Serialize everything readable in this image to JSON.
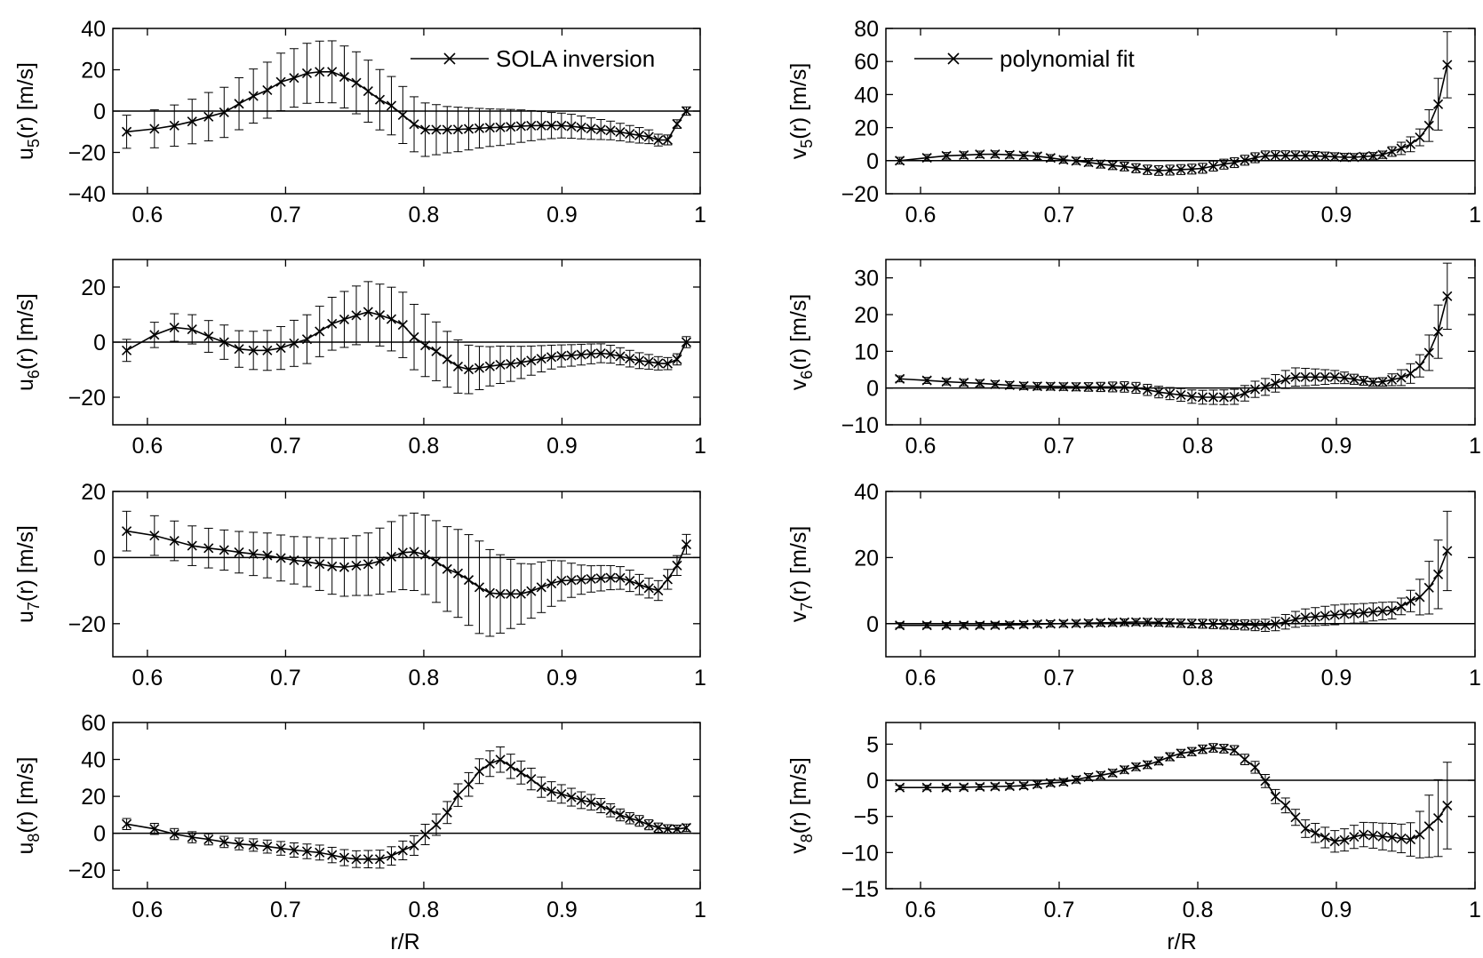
{
  "figure": {
    "xlabel": "r/R",
    "legend_left": "SOLA inversion",
    "legend_right": "polynomial fit"
  },
  "chart_data": [
    {
      "id": "u5",
      "type": "line",
      "column": "left",
      "row": 0,
      "ylabel_base": "u",
      "ylabel_sub": "5",
      "ylabel_rest": "(r) [m/s]",
      "xlim": [
        0.575,
        1.0
      ],
      "ylim": [
        -40,
        40
      ],
      "xticks": [
        0.6,
        0.7,
        0.8,
        0.9,
        1
      ],
      "xtick_labels": [
        "0.6",
        "0.7",
        "0.8",
        "0.9",
        "1"
      ],
      "yticks": [
        -40,
        -20,
        0,
        20,
        40
      ],
      "ytick_labels": [
        "−40",
        "−20",
        "0",
        "20",
        "40"
      ],
      "legend": "top-right",
      "x_range": [
        0.585,
        0.99
      ],
      "n_points": 48,
      "knots_x": [
        0.585,
        0.6,
        0.62,
        0.65,
        0.68,
        0.7,
        0.72,
        0.735,
        0.75,
        0.77,
        0.8,
        0.82,
        0.85,
        0.88,
        0.9,
        0.93,
        0.96,
        0.975,
        0.985,
        0.99
      ],
      "knots_y": [
        -10,
        -9,
        -7,
        -2,
        8,
        15,
        19,
        19,
        14,
        5,
        -9,
        -9,
        -8,
        -7,
        -7,
        -9,
        -12,
        -15,
        -5,
        0
      ],
      "err_x": [
        0.585,
        0.62,
        0.65,
        0.7,
        0.73,
        0.76,
        0.78,
        0.8,
        0.82,
        0.85,
        0.9,
        0.95,
        0.985
      ],
      "err_y": [
        8,
        10,
        12,
        14,
        15,
        15,
        14,
        13,
        11,
        9,
        6,
        4,
        2
      ]
    },
    {
      "id": "u6",
      "type": "line",
      "column": "left",
      "row": 1,
      "ylabel_base": "u",
      "ylabel_sub": "6",
      "ylabel_rest": "(r) [m/s]",
      "xlim": [
        0.575,
        1.0
      ],
      "ylim": [
        -30,
        30
      ],
      "xticks": [
        0.6,
        0.7,
        0.8,
        0.9,
        1
      ],
      "xtick_labels": [
        "0.6",
        "0.7",
        "0.8",
        "0.9",
        "1"
      ],
      "yticks": [
        -20,
        0,
        20
      ],
      "ytick_labels": [
        "−20",
        "0",
        "20"
      ],
      "x_range": [
        0.585,
        0.99
      ],
      "n_points": 48,
      "knots_x": [
        0.585,
        0.6,
        0.625,
        0.645,
        0.67,
        0.69,
        0.71,
        0.74,
        0.76,
        0.78,
        0.8,
        0.83,
        0.86,
        0.9,
        0.93,
        0.96,
        0.975,
        0.985,
        0.99
      ],
      "knots_y": [
        -3,
        2,
        6,
        2,
        -3,
        -3,
        0,
        8,
        11,
        8,
        -1,
        -10,
        -8,
        -5,
        -4,
        -7,
        -8,
        -6,
        0
      ],
      "err_x": [
        0.585,
        0.62,
        0.68,
        0.72,
        0.76,
        0.79,
        0.82,
        0.85,
        0.9,
        0.95,
        0.985
      ],
      "err_y": [
        4,
        5,
        7,
        9,
        11,
        12,
        10,
        7,
        4,
        3,
        2
      ]
    },
    {
      "id": "u7",
      "type": "line",
      "column": "left",
      "row": 2,
      "ylabel_base": "u",
      "ylabel_sub": "7",
      "ylabel_rest": "(r) [m/s]",
      "xlim": [
        0.575,
        1.0
      ],
      "ylim": [
        -30,
        20
      ],
      "xticks": [
        0.6,
        0.7,
        0.8,
        0.9,
        1
      ],
      "xtick_labels": [
        "0.6",
        "0.7",
        "0.8",
        "0.9",
        "1"
      ],
      "yticks": [
        -20,
        0,
        20
      ],
      "ytick_labels": [
        "−20",
        "0",
        "20"
      ],
      "x_range": [
        0.585,
        0.99
      ],
      "n_points": 48,
      "knots_x": [
        0.585,
        0.6,
        0.64,
        0.68,
        0.71,
        0.74,
        0.76,
        0.79,
        0.8,
        0.82,
        0.85,
        0.87,
        0.9,
        0.94,
        0.97,
        0.98,
        0.99
      ],
      "knots_y": [
        8,
        7,
        3,
        1,
        -1,
        -3,
        -2,
        2,
        1,
        -4,
        -11,
        -11,
        -7,
        -6,
        -10,
        -5,
        4
      ],
      "err_x": [
        0.585,
        0.65,
        0.7,
        0.75,
        0.8,
        0.84,
        0.88,
        0.92,
        0.96,
        0.985
      ],
      "err_y": [
        6,
        6,
        7,
        9,
        12,
        14,
        8,
        4,
        3,
        3
      ]
    },
    {
      "id": "u8",
      "type": "line",
      "column": "left",
      "row": 3,
      "ylabel_base": "u",
      "ylabel_sub": "8",
      "ylabel_rest": "(r) [m/s]",
      "xlim": [
        0.575,
        1.0
      ],
      "ylim": [
        -30,
        60
      ],
      "xticks": [
        0.6,
        0.7,
        0.8,
        0.9,
        1
      ],
      "xtick_labels": [
        "0.6",
        "0.7",
        "0.8",
        "0.9",
        "1"
      ],
      "yticks": [
        -20,
        0,
        20,
        40,
        60
      ],
      "ytick_labels": [
        "−20",
        "0",
        "20",
        "40",
        "60"
      ],
      "x_range": [
        0.585,
        0.99
      ],
      "n_points": 48,
      "knots_x": [
        0.585,
        0.6,
        0.63,
        0.67,
        0.72,
        0.75,
        0.77,
        0.79,
        0.81,
        0.83,
        0.845,
        0.855,
        0.87,
        0.89,
        0.92,
        0.95,
        0.97,
        0.98,
        0.99
      ],
      "knots_y": [
        5,
        3,
        -2,
        -6,
        -10,
        -14,
        -14,
        -8,
        5,
        25,
        37,
        40,
        33,
        23,
        17,
        8,
        3,
        2,
        3
      ],
      "err_x": [
        0.585,
        0.65,
        0.72,
        0.78,
        0.82,
        0.85,
        0.9,
        0.95,
        0.99
      ],
      "err_y": [
        3,
        3,
        4,
        5,
        6,
        7,
        5,
        3,
        2
      ]
    },
    {
      "id": "v5",
      "type": "line",
      "column": "right",
      "row": 0,
      "ylabel_base": "v",
      "ylabel_sub": "5",
      "ylabel_rest": "(r) [m/s]",
      "xlim": [
        0.575,
        1.0
      ],
      "ylim": [
        -20,
        80
      ],
      "xticks": [
        0.6,
        0.7,
        0.8,
        0.9,
        1
      ],
      "xtick_labels": [
        "0.6",
        "0.7",
        "0.8",
        "0.9",
        "1"
      ],
      "yticks": [
        -20,
        0,
        20,
        40,
        60,
        80
      ],
      "ytick_labels": [
        "−20",
        "0",
        "20",
        "40",
        "60",
        "80"
      ],
      "legend": "top-left",
      "x_range": [
        0.585,
        0.98
      ],
      "n_points": 48,
      "knots_x": [
        0.585,
        0.62,
        0.65,
        0.68,
        0.71,
        0.74,
        0.77,
        0.8,
        0.82,
        0.85,
        0.88,
        0.91,
        0.93,
        0.95,
        0.96,
        0.97,
        0.975,
        0.98
      ],
      "knots_y": [
        0,
        3,
        4,
        3,
        0,
        -3,
        -6,
        -5,
        -2,
        3,
        3,
        2,
        3,
        8,
        14,
        24,
        38,
        58
      ],
      "err_x": [
        0.585,
        0.7,
        0.78,
        0.86,
        0.93,
        0.96,
        0.98
      ],
      "err_y": [
        2,
        2,
        3,
        3,
        2,
        5,
        20
      ]
    },
    {
      "id": "v6",
      "type": "line",
      "column": "right",
      "row": 1,
      "ylabel_base": "v",
      "ylabel_sub": "6",
      "ylabel_rest": "(r) [m/s]",
      "xlim": [
        0.575,
        1.0
      ],
      "ylim": [
        -10,
        35
      ],
      "xticks": [
        0.6,
        0.7,
        0.8,
        0.9,
        1
      ],
      "xtick_labels": [
        "0.6",
        "0.7",
        "0.8",
        "0.9",
        "1"
      ],
      "yticks": [
        -10,
        0,
        10,
        20,
        30
      ],
      "ytick_labels": [
        "−10",
        "0",
        "10",
        "20",
        "30"
      ],
      "x_range": [
        0.585,
        0.98
      ],
      "n_points": 48,
      "knots_x": [
        0.585,
        0.63,
        0.68,
        0.72,
        0.75,
        0.78,
        0.8,
        0.825,
        0.845,
        0.87,
        0.9,
        0.93,
        0.95,
        0.96,
        0.97,
        0.975,
        0.98
      ],
      "knots_y": [
        2.5,
        1.5,
        0.5,
        0.3,
        0.3,
        -1.5,
        -2.5,
        -2.5,
        0,
        3,
        3,
        1.5,
        3,
        6,
        11,
        17,
        25
      ],
      "err_x": [
        0.585,
        0.7,
        0.76,
        0.82,
        0.87,
        0.93,
        0.96,
        0.98
      ],
      "err_y": [
        0.8,
        1,
        1.5,
        2,
        2.5,
        1,
        3,
        9
      ]
    },
    {
      "id": "v7",
      "type": "line",
      "column": "right",
      "row": 2,
      "ylabel_base": "v",
      "ylabel_sub": "7",
      "ylabel_rest": "(r) [m/s]",
      "xlim": [
        0.575,
        1.0
      ],
      "ylim": [
        -10,
        40
      ],
      "xticks": [
        0.6,
        0.7,
        0.8,
        0.9,
        1
      ],
      "xtick_labels": [
        "0.6",
        "0.7",
        "0.8",
        "0.9",
        "1"
      ],
      "yticks": [
        0,
        20,
        40
      ],
      "ytick_labels": [
        "0",
        "20",
        "40"
      ],
      "x_range": [
        0.585,
        0.98
      ],
      "n_points": 48,
      "knots_x": [
        0.585,
        0.65,
        0.7,
        0.76,
        0.8,
        0.85,
        0.88,
        0.91,
        0.94,
        0.96,
        0.97,
        0.975,
        0.98
      ],
      "knots_y": [
        -0.5,
        -0.5,
        0,
        0.5,
        0,
        -0.5,
        2,
        3,
        4,
        8,
        12,
        16,
        22
      ],
      "err_x": [
        0.585,
        0.75,
        0.83,
        0.9,
        0.95,
        0.98
      ],
      "err_y": [
        0.8,
        1,
        1.5,
        3,
        2.5,
        12
      ]
    },
    {
      "id": "v8",
      "type": "line",
      "column": "right",
      "row": 3,
      "ylabel_base": "v",
      "ylabel_sub": "8",
      "ylabel_rest": "(r) [m/s]",
      "xlim": [
        0.575,
        1.0
      ],
      "ylim": [
        -15,
        8
      ],
      "xticks": [
        0.6,
        0.7,
        0.8,
        0.9,
        1
      ],
      "xtick_labels": [
        "0.6",
        "0.7",
        "0.8",
        "0.9",
        "1"
      ],
      "yticks": [
        -15,
        -10,
        -5,
        0,
        5
      ],
      "ytick_labels": [
        "−15",
        "−10",
        "−5",
        "0",
        "5"
      ],
      "x_range": [
        0.585,
        0.98
      ],
      "n_points": 48,
      "knots_x": [
        0.585,
        0.62,
        0.67,
        0.7,
        0.73,
        0.76,
        0.79,
        0.81,
        0.825,
        0.84,
        0.86,
        0.88,
        0.9,
        0.92,
        0.935,
        0.955,
        0.97,
        0.98
      ],
      "knots_y": [
        -1,
        -1,
        -0.8,
        -0.3,
        0.7,
        2,
        3.8,
        4.5,
        4.3,
        2,
        -3,
        -7,
        -8.5,
        -7.5,
        -7.8,
        -8.2,
        -6,
        -3.5
      ],
      "err_x": [
        0.585,
        0.75,
        0.82,
        0.86,
        0.9,
        0.95,
        0.98
      ],
      "err_y": [
        0.3,
        0.5,
        0.6,
        1,
        1.5,
        2,
        6
      ]
    }
  ]
}
